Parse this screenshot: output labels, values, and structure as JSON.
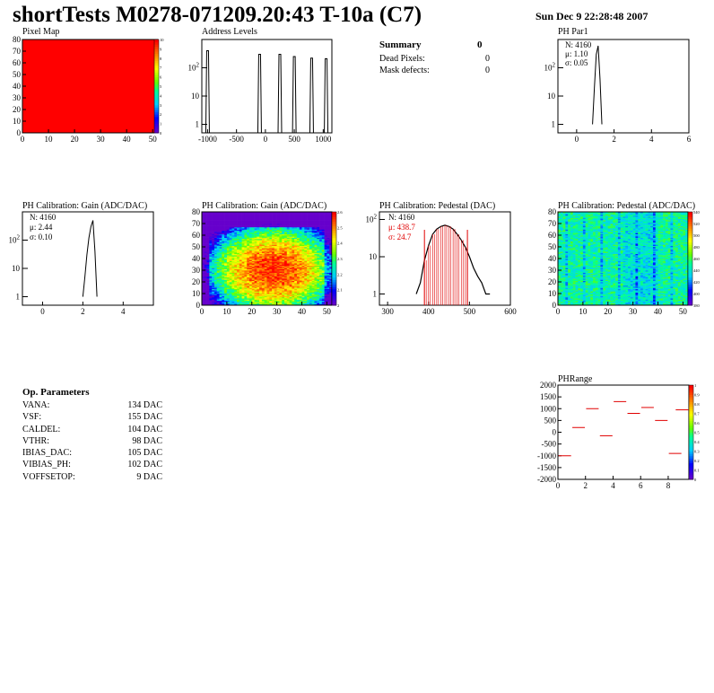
{
  "header": {
    "title": "shortTests M0278-071209.20:43 T-10a (C7)",
    "date": "Sun Dec  9 22:28:48 2007"
  },
  "summary": {
    "title": "Summary",
    "value": "0",
    "rows": [
      {
        "label": "Dead Pixels:",
        "value": "0"
      },
      {
        "label": "Mask defects:",
        "value": "0"
      }
    ]
  },
  "op_params": {
    "title": "Op. Parameters",
    "rows": [
      {
        "label": "VANA:",
        "value": "134 DAC"
      },
      {
        "label": "VSF:",
        "value": "155 DAC"
      },
      {
        "label": "CALDEL:",
        "value": "104 DAC"
      },
      {
        "label": "VTHR:",
        "value": "98 DAC"
      },
      {
        "label": "IBIAS_DAC:",
        "value": "105 DAC"
      },
      {
        "label": "VIBIAS_PH:",
        "value": "102 DAC"
      },
      {
        "label": "VOFFSETOP:",
        "value": "9 DAC"
      }
    ]
  },
  "colors": {
    "red": "#ff0000",
    "line": "#000000",
    "stat_red": "#e00000"
  },
  "chart_data": [
    {
      "id": "pixel_map",
      "type": "heatmap",
      "title": "Pixel Map",
      "xlim": [
        0,
        52
      ],
      "ylim": [
        0,
        80
      ],
      "xticks": [
        "0",
        "10",
        "20",
        "30",
        "40",
        "50"
      ],
      "yticks": [
        "0",
        "10",
        "20",
        "30",
        "40",
        "50",
        "60",
        "70",
        "80"
      ],
      "fill_value": 10,
      "zticks": [
        "0",
        "1",
        "2",
        "3",
        "4",
        "5",
        "6",
        "7",
        "8",
        "9",
        "10"
      ]
    },
    {
      "id": "address_levels",
      "type": "line",
      "title": "Address Levels",
      "log_y": true,
      "xlim": [
        -1100,
        1150
      ],
      "xticks": [
        "-1000",
        "-500",
        "0",
        "500",
        "1000"
      ],
      "yticks": [
        "1",
        "10",
        "10^2"
      ],
      "peaks": [
        {
          "x": -1000,
          "height": 400
        },
        {
          "x": -100,
          "height": 300
        },
        {
          "x": 250,
          "height": 300
        },
        {
          "x": 500,
          "height": 250
        },
        {
          "x": 800,
          "height": 220
        },
        {
          "x": 1050,
          "height": 210
        }
      ]
    },
    {
      "id": "ph_par1",
      "type": "histogram",
      "title": "PH Par1",
      "log_y": true,
      "xlim": [
        -1,
        6
      ],
      "xticks": [
        "0",
        "2",
        "4",
        "6"
      ],
      "yticks": [
        "1",
        "10",
        "10^2"
      ],
      "stats": {
        "n": "N: 4160",
        "mean": "μ: 1.10",
        "sigma": "σ: 0.05"
      },
      "x": [
        0.85,
        0.95,
        1.05,
        1.15,
        1.25,
        1.35
      ],
      "y": [
        1,
        20,
        300,
        600,
        40,
        1
      ]
    },
    {
      "id": "ph_gain_hist",
      "type": "histogram",
      "title": "PH Calibration: Gain (ADC/DAC)",
      "log_y": true,
      "xlim": [
        -1,
        5.5
      ],
      "xticks": [
        "0",
        "2",
        "4"
      ],
      "yticks": [
        "1",
        "10",
        "10^2"
      ],
      "stats": {
        "n": "N: 4160",
        "mean": "μ: 2.44",
        "sigma": "σ: 0.10"
      },
      "x": [
        2.0,
        2.1,
        2.2,
        2.3,
        2.4,
        2.5,
        2.6,
        2.7
      ],
      "y": [
        1,
        5,
        30,
        120,
        300,
        500,
        40,
        1
      ]
    },
    {
      "id": "ph_gain_map",
      "type": "heatmap",
      "title": "PH Calibration: Gain (ADC/DAC)",
      "xlim": [
        0,
        52
      ],
      "ylim": [
        0,
        80
      ],
      "xticks": [
        "0",
        "10",
        "20",
        "30",
        "40",
        "50"
      ],
      "yticks": [
        "0",
        "10",
        "20",
        "30",
        "40",
        "50",
        "60",
        "70",
        "80"
      ],
      "zticks": [
        "2",
        "2.1",
        "2.2",
        "2.3",
        "2.4",
        "2.5",
        "2.6"
      ]
    },
    {
      "id": "ph_pedestal_hist",
      "type": "histogram",
      "title": "PH Calibration: Pedestal (DAC)",
      "log_y": true,
      "xlim": [
        280,
        600
      ],
      "xticks": [
        "300",
        "400",
        "500",
        "600"
      ],
      "yticks": [
        "1",
        "10",
        "10^2"
      ],
      "stats": {
        "n": "N: 4160",
        "mean": "μ: 438.7",
        "sigma": "σ: 24.7"
      },
      "fit_range": [
        390,
        495
      ],
      "x": [
        370,
        380,
        390,
        400,
        410,
        420,
        430,
        440,
        450,
        460,
        470,
        480,
        490,
        500,
        510,
        520,
        530,
        540,
        550
      ],
      "y": [
        1,
        2,
        8,
        20,
        40,
        55,
        65,
        70,
        65,
        55,
        40,
        28,
        18,
        10,
        5,
        3,
        2,
        1,
        1
      ]
    },
    {
      "id": "ph_pedestal_map",
      "type": "heatmap",
      "title": "PH Calibration: Pedestal (ADC/DAC)",
      "xlim": [
        0,
        52
      ],
      "ylim": [
        0,
        80
      ],
      "xticks": [
        "0",
        "10",
        "20",
        "30",
        "40",
        "50"
      ],
      "yticks": [
        "0",
        "10",
        "20",
        "30",
        "40",
        "50",
        "60",
        "70",
        "80"
      ],
      "zticks": [
        "380",
        "400",
        "420",
        "440",
        "460",
        "480",
        "500",
        "520",
        "540"
      ]
    },
    {
      "id": "ph_range",
      "type": "scatter",
      "title": "PHRange",
      "xlim": [
        0,
        9.5
      ],
      "ylim": [
        -2000,
        2000
      ],
      "xticks": [
        "0",
        "2",
        "4",
        "6",
        "8"
      ],
      "yticks": [
        "-2000",
        "-1500",
        "-1000",
        "-500",
        "0",
        "500",
        "1000",
        "1500",
        "2000"
      ],
      "zticks": [
        "0",
        "0.1",
        "0.2",
        "0.3",
        "0.4",
        "0.5",
        "0.6",
        "0.7",
        "0.8",
        "0.9",
        "1"
      ],
      "points": [
        {
          "x": 0.5,
          "y": -1000
        },
        {
          "x": 1.5,
          "y": 200
        },
        {
          "x": 2.5,
          "y": 1000
        },
        {
          "x": 3.5,
          "y": -150
        },
        {
          "x": 4.5,
          "y": 1300
        },
        {
          "x": 5.5,
          "y": 800
        },
        {
          "x": 6.5,
          "y": 1050
        },
        {
          "x": 7.5,
          "y": 500
        },
        {
          "x": 8.5,
          "y": -900
        },
        {
          "x": 9.0,
          "y": 950
        }
      ]
    }
  ]
}
